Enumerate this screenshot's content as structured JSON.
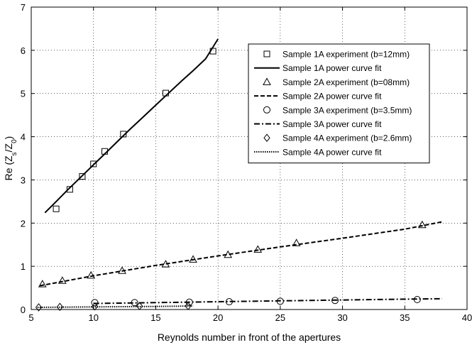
{
  "chart_data": {
    "type": "scatter",
    "title": "",
    "xlabel": "Reynolds number in front of the apertures",
    "ylabel_main": "Re (Z",
    "ylabel_sub1": "s",
    "ylabel_mid": "/Z",
    "ylabel_sub2": "0",
    "ylabel_end": ")",
    "xlim": [
      5,
      40
    ],
    "ylim": [
      0,
      7
    ],
    "xticks": [
      5,
      10,
      15,
      20,
      25,
      30,
      35,
      40
    ],
    "yticks": [
      0,
      1,
      2,
      3,
      4,
      5,
      6,
      7
    ],
    "grid": true,
    "legend_position": "top-right",
    "series": [
      {
        "name": "Sample 1A experiment (b=12mm)",
        "kind": "markers",
        "marker": "square",
        "points": [
          [
            7.0,
            2.33
          ],
          [
            8.1,
            2.78
          ],
          [
            9.1,
            3.08
          ],
          [
            10.0,
            3.37
          ],
          [
            10.9,
            3.66
          ],
          [
            12.4,
            4.06
          ],
          [
            15.8,
            5.01
          ],
          [
            19.6,
            5.98
          ]
        ]
      },
      {
        "name": "Sample 1A power curve fit",
        "kind": "line",
        "dash": "solid",
        "points": [
          [
            6.1,
            2.24
          ],
          [
            7.0,
            2.5
          ],
          [
            8.0,
            2.79
          ],
          [
            9.0,
            3.07
          ],
          [
            10.0,
            3.35
          ],
          [
            11.0,
            3.63
          ],
          [
            12.0,
            3.91
          ],
          [
            13.0,
            4.19
          ],
          [
            14.0,
            4.46
          ],
          [
            15.0,
            4.73
          ],
          [
            16.0,
            5.0
          ],
          [
            17.0,
            5.27
          ],
          [
            18.0,
            5.53
          ],
          [
            19.0,
            5.8
          ],
          [
            20.0,
            6.26
          ]
        ]
      },
      {
        "name": "Sample 2A experiment (b=08mm)",
        "kind": "markers",
        "marker": "triangle",
        "points": [
          [
            5.9,
            0.59
          ],
          [
            7.5,
            0.67
          ],
          [
            9.8,
            0.79
          ],
          [
            12.3,
            0.9
          ],
          [
            15.8,
            1.05
          ],
          [
            18.0,
            1.16
          ],
          [
            20.8,
            1.27
          ],
          [
            23.2,
            1.39
          ],
          [
            26.3,
            1.54
          ],
          [
            36.4,
            1.96
          ]
        ]
      },
      {
        "name": "Sample 2A power curve fit",
        "kind": "line",
        "dash": "dashed",
        "points": [
          [
            5.7,
            0.55
          ],
          [
            10.0,
            0.78
          ],
          [
            15.0,
            1.02
          ],
          [
            20.0,
            1.24
          ],
          [
            25.0,
            1.45
          ],
          [
            30.0,
            1.65
          ],
          [
            35.0,
            1.86
          ],
          [
            38.0,
            2.03
          ]
        ]
      },
      {
        "name": "Sample 3A experiment (b=3.5mm)",
        "kind": "markers",
        "marker": "circle",
        "points": [
          [
            10.1,
            0.16
          ],
          [
            13.3,
            0.16
          ],
          [
            17.7,
            0.17
          ],
          [
            20.9,
            0.18
          ],
          [
            25.0,
            0.19
          ],
          [
            29.4,
            0.21
          ],
          [
            36.0,
            0.23
          ]
        ]
      },
      {
        "name": "Sample 3A power curve fit",
        "kind": "line",
        "dash": "dashdot",
        "points": [
          [
            10.0,
            0.14
          ],
          [
            15.0,
            0.16
          ],
          [
            20.0,
            0.18
          ],
          [
            25.0,
            0.2
          ],
          [
            30.0,
            0.22
          ],
          [
            35.0,
            0.24
          ],
          [
            38.0,
            0.25
          ]
        ]
      },
      {
        "name": "Sample 4A experiment (b=2.6mm)",
        "kind": "markers",
        "marker": "diamond",
        "points": [
          [
            5.6,
            0.05
          ],
          [
            7.3,
            0.06
          ],
          [
            10.1,
            0.07
          ],
          [
            13.7,
            0.08
          ],
          [
            17.6,
            0.08
          ]
        ]
      },
      {
        "name": "Sample 4A power curve fit",
        "kind": "line",
        "dash": "dotted",
        "points": [
          [
            5.5,
            0.05
          ],
          [
            10.0,
            0.06
          ],
          [
            15.0,
            0.07
          ],
          [
            18.0,
            0.08
          ]
        ]
      }
    ]
  }
}
